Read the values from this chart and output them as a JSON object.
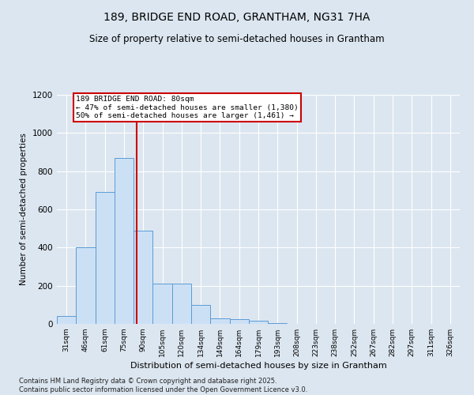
{
  "title1": "189, BRIDGE END ROAD, GRANTHAM, NG31 7HA",
  "title2": "Size of property relative to semi-detached houses in Grantham",
  "xlabel": "Distribution of semi-detached houses by size in Grantham",
  "ylabel": "Number of semi-detached properties",
  "categories": [
    "31sqm",
    "46sqm",
    "61sqm",
    "75sqm",
    "90sqm",
    "105sqm",
    "120sqm",
    "134sqm",
    "149sqm",
    "164sqm",
    "179sqm",
    "193sqm",
    "208sqm",
    "223sqm",
    "238sqm",
    "252sqm",
    "267sqm",
    "282sqm",
    "297sqm",
    "311sqm",
    "326sqm"
  ],
  "values": [
    40,
    400,
    690,
    870,
    490,
    210,
    210,
    100,
    30,
    25,
    15,
    5,
    2,
    2,
    2,
    2,
    1,
    1,
    1,
    1,
    2
  ],
  "bar_color": "#cce0f5",
  "bar_edge_color": "#5b9bd5",
  "red_line_x": 3.65,
  "red_line_color": "#cc0000",
  "annotation_title": "189 BRIDGE END ROAD: 80sqm",
  "annotation_line1": "← 47% of semi-detached houses are smaller (1,380)",
  "annotation_line2": "50% of semi-detached houses are larger (1,461) →",
  "annotation_box_facecolor": "#ffffff",
  "annotation_box_edgecolor": "#cc0000",
  "ylim": [
    0,
    1200
  ],
  "yticks": [
    0,
    200,
    400,
    600,
    800,
    1000,
    1200
  ],
  "background_color": "#dce6f0",
  "grid_color": "#ffffff",
  "footer1": "Contains HM Land Registry data © Crown copyright and database right 2025.",
  "footer2": "Contains public sector information licensed under the Open Government Licence v3.0."
}
